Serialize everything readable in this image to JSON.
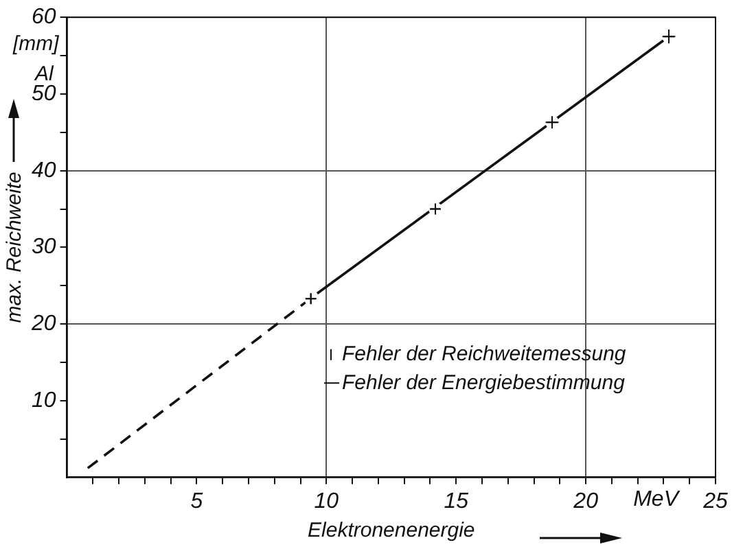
{
  "chart_data": {
    "type": "scatter",
    "xlabel": "Elektronenenergie",
    "ylabel": "max. Reichweite",
    "xlim": [
      0,
      25
    ],
    "ylim": [
      0,
      60
    ],
    "xticks": [
      {
        "value": 1,
        "label": null
      },
      {
        "value": 2,
        "label": null
      },
      {
        "value": 3,
        "label": null
      },
      {
        "value": 4,
        "label": null
      },
      5,
      {
        "value": 6,
        "label": null
      },
      {
        "value": 7,
        "label": null
      },
      {
        "value": 8,
        "label": null
      },
      {
        "value": 9,
        "label": null
      },
      10,
      {
        "value": 11,
        "label": null
      },
      {
        "value": 12,
        "label": null
      },
      {
        "value": 13,
        "label": null
      },
      {
        "value": 14,
        "label": null
      },
      15,
      {
        "value": 16,
        "label": null
      },
      {
        "value": 17,
        "label": null
      },
      {
        "value": 18,
        "label": null
      },
      {
        "value": 19,
        "label": null
      },
      20,
      {
        "value": 21,
        "label": null
      },
      {
        "value": 22,
        "label": null
      },
      {
        "value": 23,
        "label": null
      },
      {
        "value": 24,
        "label": null
      },
      25
    ],
    "yticks": [
      {
        "value": 5,
        "label": null
      },
      10,
      {
        "value": 15,
        "label": null
      },
      20,
      {
        "value": 25,
        "label": null
      },
      30,
      {
        "value": 35,
        "label": null
      },
      40,
      {
        "value": 45,
        "label": null
      },
      50,
      {
        "value": 55,
        "label": null
      },
      60
    ],
    "grid": true,
    "legend": false,
    "series": [
      {
        "type": "scatter",
        "marker": "cross",
        "color": "#111111",
        "x": [
          9.4,
          14.2,
          18.7,
          23.2
        ],
        "values": [
          23.3,
          35.0,
          46.3,
          57.5
        ],
        "errors": [
          0.7,
          0.7,
          0.8,
          0.9
        ],
        "xerrors": [
          0.2,
          0.2,
          0.25,
          0.25
        ]
      },
      {
        "type": "line",
        "color": "#111111",
        "line_style": "solid",
        "x": [
          9.65,
          23.0
        ],
        "values": [
          24.0,
          57.0
        ]
      },
      {
        "type": "line",
        "color": "#111111",
        "line_style": "dashed",
        "x": [
          0.8,
          9.65
        ],
        "values": [
          1.2,
          24.0
        ]
      }
    ],
    "annotations": [
      "[mm]",
      "Al",
      "MeV",
      "Fehler der Reichweitemessung",
      "Fehler der Energiebestimmung"
    ]
  }
}
